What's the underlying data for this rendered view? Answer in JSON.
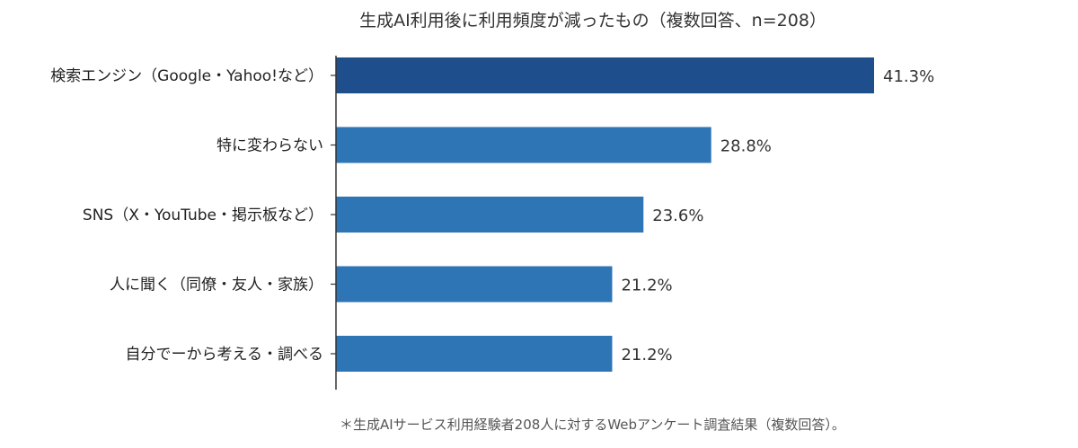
{
  "chart_data": {
    "type": "bar",
    "orientation": "horizontal",
    "title": "生成AI利用後に利用頻度が減ったもの（複数回答、n=208）",
    "categories": [
      "検索エンジン（Google・Yahoo!など）",
      "特に変わらない",
      "SNS（X・YouTube・掲示板など）",
      "人に聞く（同僚・友人・家族）",
      "自分でーから考える・調べる"
    ],
    "values": [
      41.3,
      28.8,
      23.6,
      21.2,
      21.2
    ],
    "value_labels": [
      "41.3%",
      "28.8%",
      "23.6%",
      "21.2%",
      "21.2%"
    ],
    "unit": "%",
    "xlim": [
      0,
      41.3
    ],
    "colors": {
      "highlight": "#1f4e8c",
      "default": "#2e75b6"
    },
    "grid": false,
    "legend": "none",
    "footnote": "＊生成AIサービス利用経験者208人に対するWebアンケート調査結果（複数回答）。"
  }
}
